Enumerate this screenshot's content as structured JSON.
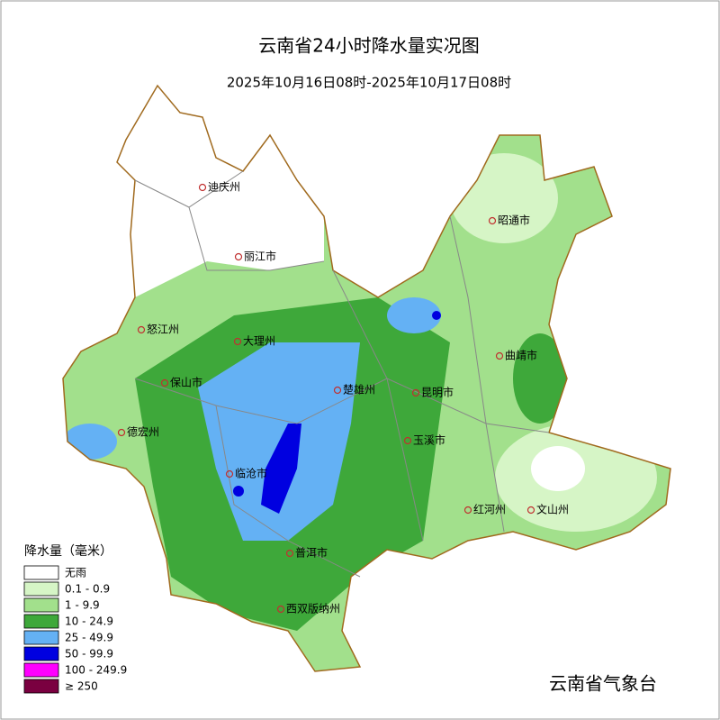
{
  "header": {
    "title": "云南省24小时降水量实况图",
    "subtitle": "2025年10月16日08时-2025年10月17日08时"
  },
  "cities": [
    {
      "label": "迪庆州"
    },
    {
      "label": "丽江市"
    },
    {
      "label": "昭通市"
    },
    {
      "label": "怒江州"
    },
    {
      "label": "大理州"
    },
    {
      "label": "曲靖市"
    },
    {
      "label": "保山市"
    },
    {
      "label": "楚雄州"
    },
    {
      "label": "昆明市"
    },
    {
      "label": "德宏州"
    },
    {
      "label": "玉溪市"
    },
    {
      "label": "临沧市"
    },
    {
      "label": "红河州"
    },
    {
      "label": "文山州"
    },
    {
      "label": "普洱市"
    },
    {
      "label": "西双版纳州"
    }
  ],
  "legend": {
    "title": "降水量（毫米）",
    "items": [
      {
        "label": "无雨",
        "color": "#ffffff"
      },
      {
        "label": "0.1 - 0.9",
        "color": "#d6f5c6"
      },
      {
        "label": "1 -  9.9",
        "color": "#a2e08c"
      },
      {
        "label": "10 - 24.9",
        "color": "#3ea83a"
      },
      {
        "label": "25 - 49.9",
        "color": "#64b1f4"
      },
      {
        "label": "50 - 99.9",
        "color": "#0000e0"
      },
      {
        "label": "100 - 249.9",
        "color": "#ff00ff"
      },
      {
        "label": "≥ 250",
        "color": "#7a0040"
      }
    ]
  },
  "credit": "云南省气象台"
}
